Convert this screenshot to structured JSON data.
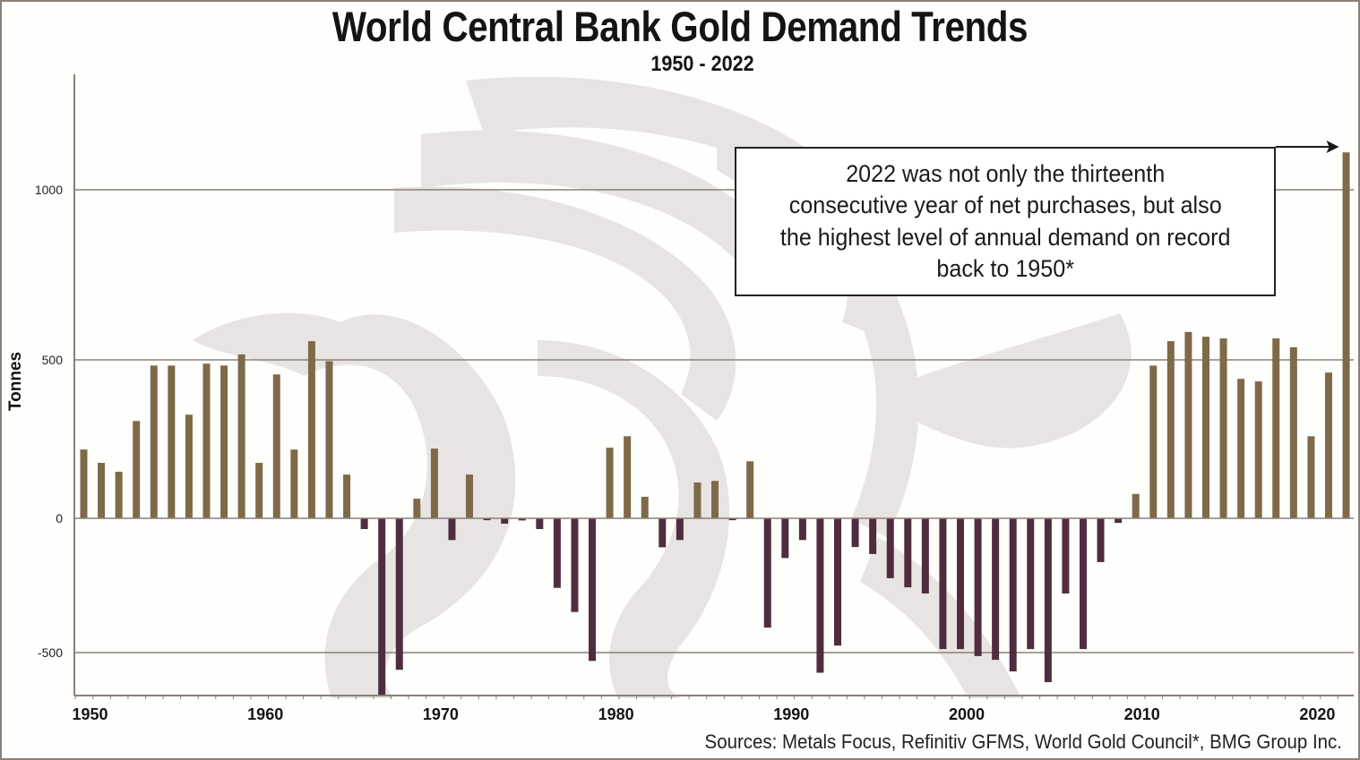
{
  "colors": {
    "positive": "#7e6a48",
    "negative": "#4f2d3f",
    "grid": "#8a8078",
    "watermark": "#e8e4e4"
  },
  "chart_data": {
    "type": "bar",
    "title": "World Central Bank Gold Demand Trends",
    "subtitle": "1950 - 2022",
    "xlabel": "",
    "ylabel": "Tonnes",
    "ylim": [
      -666,
      1250
    ],
    "yticks": [
      -500,
      0,
      500,
      1000
    ],
    "ytick_labels": [
      "-500",
      "0",
      "500",
      "1000"
    ],
    "xtick_labels": [
      "1950",
      "1960",
      "1970",
      "1980",
      "1990",
      "2000",
      "2010",
      "2020"
    ],
    "grid": true,
    "legend": "none",
    "categories": [
      1950,
      1951,
      1952,
      1953,
      1954,
      1955,
      1956,
      1957,
      1958,
      1959,
      1960,
      1961,
      1962,
      1963,
      1964,
      1965,
      1966,
      1967,
      1968,
      1969,
      1970,
      1971,
      1972,
      1973,
      1974,
      1975,
      1976,
      1977,
      1978,
      1979,
      1980,
      1981,
      1982,
      1983,
      1984,
      1985,
      1986,
      1987,
      1988,
      1989,
      1990,
      1991,
      1992,
      1993,
      1994,
      1995,
      1996,
      1997,
      1998,
      1999,
      2000,
      2001,
      2002,
      2003,
      2004,
      2005,
      2006,
      2007,
      2008,
      2009,
      2010,
      2011,
      2012,
      2013,
      2014,
      2015,
      2016,
      2017,
      2018,
      2019,
      2020,
      2021,
      2022
    ],
    "values": [
      217,
      175,
      147,
      307,
      482,
      482,
      327,
      488,
      482,
      516,
      175,
      454,
      217,
      555,
      496,
      138,
      -40,
      -666,
      -564,
      62,
      220,
      -81,
      138,
      -7,
      -20,
      -8,
      -40,
      -259,
      -349,
      -531,
      223,
      259,
      68,
      -108,
      -81,
      113,
      118,
      -7,
      180,
      -407,
      -148,
      -81,
      -575,
      -474,
      -107,
      -133,
      -223,
      -257,
      -280,
      -487,
      -487,
      -513,
      -527,
      -570,
      -487,
      -610,
      -280,
      -487,
      -163,
      -17,
      77,
      482,
      555,
      582,
      568,
      563,
      440,
      432,
      563,
      537,
      259,
      460,
      1110
    ],
    "annotation": {
      "text": "2022 was not only the thirteenth\nconsecutive year of net purchases, but also\nthe highest level of annual demand on record\nback to 1950*",
      "target": 2022
    },
    "source": "Sources: Metals Focus, Refinitiv GFMS, World Gold Council*, BMG Group Inc."
  }
}
